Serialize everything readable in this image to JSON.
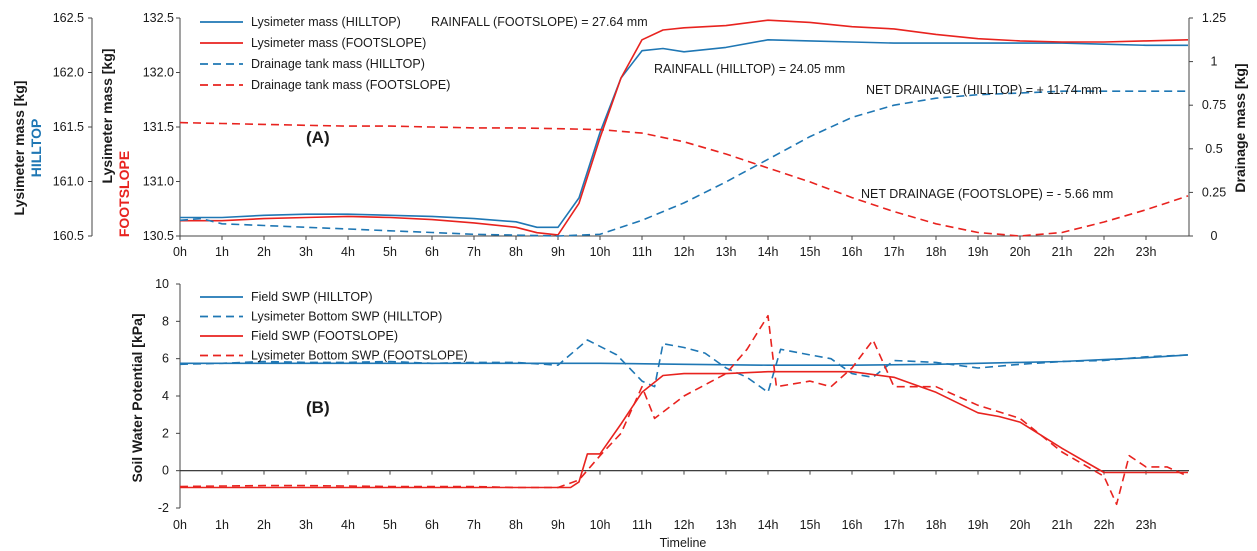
{
  "chart_data": [
    {
      "type": "line",
      "panel_label": "(A)",
      "x": [
        0,
        0.5,
        1,
        2,
        3,
        4,
        5,
        6,
        7,
        7.5,
        8,
        8.5,
        9,
        9.5,
        10,
        10.5,
        11,
        11.5,
        12,
        13,
        14,
        15,
        16,
        17,
        18,
        19,
        20,
        21,
        22,
        23,
        24
      ],
      "xticks": [
        "0h",
        "1h",
        "2h",
        "3h",
        "4h",
        "5h",
        "6h",
        "7h",
        "8h",
        "9h",
        "10h",
        "11h",
        "12h",
        "13h",
        "14h",
        "15h",
        "16h",
        "17h",
        "18h",
        "19h",
        "20h",
        "21h",
        "22h",
        "23h"
      ],
      "y_left_outer": {
        "label": "Lysimeter mass [kg]",
        "sublabel": "HILLTOP",
        "ylim": [
          160.5,
          162.5
        ],
        "ticks": [
          "160.5",
          "161.0",
          "161.5",
          "162.0",
          "162.5"
        ]
      },
      "y_left_inner": {
        "label": "Lysimeter mass [kg]",
        "sublabel": "FOOTSLOPE",
        "ylim": [
          130.5,
          132.5
        ],
        "ticks": [
          "130.5",
          "131.0",
          "131.5",
          "132.0",
          "132.5"
        ]
      },
      "y_right": {
        "label": "Drainage mass [kg]",
        "ylim": [
          0,
          1.25
        ],
        "ticks": [
          "0",
          "0.25",
          "0.5",
          "0.75",
          "1",
          "1.25"
        ]
      },
      "series": [
        {
          "name": "Lysimeter mass (HILLTOP)",
          "axis": "left_outer",
          "color": "#1f77b4",
          "dash": "solid",
          "points": [
            [
              0,
              160.67
            ],
            [
              1,
              160.67
            ],
            [
              2,
              160.69
            ],
            [
              3,
              160.7
            ],
            [
              4,
              160.7
            ],
            [
              5,
              160.69
            ],
            [
              6,
              160.68
            ],
            [
              7,
              160.66
            ],
            [
              8,
              160.63
            ],
            [
              8.5,
              160.58
            ],
            [
              9,
              160.58
            ],
            [
              9.5,
              160.85
            ],
            [
              10,
              161.45
            ],
            [
              10.5,
              161.95
            ],
            [
              11,
              162.2
            ],
            [
              11.5,
              162.22
            ],
            [
              12,
              162.19
            ],
            [
              13,
              162.23
            ],
            [
              14,
              162.3
            ],
            [
              15,
              162.29
            ],
            [
              16,
              162.28
            ],
            [
              17,
              162.27
            ],
            [
              18,
              162.27
            ],
            [
              19,
              162.27
            ],
            [
              20,
              162.27
            ],
            [
              21,
              162.27
            ],
            [
              22,
              162.26
            ],
            [
              23,
              162.25
            ],
            [
              24,
              162.25
            ]
          ]
        },
        {
          "name": "Lysimeter mass (FOOTSLOPE)",
          "axis": "left_inner",
          "color": "#e8231f",
          "dash": "solid",
          "points": [
            [
              0,
              130.64
            ],
            [
              1,
              130.64
            ],
            [
              2,
              130.66
            ],
            [
              3,
              130.67
            ],
            [
              4,
              130.68
            ],
            [
              5,
              130.67
            ],
            [
              6,
              130.65
            ],
            [
              7,
              130.62
            ],
            [
              8,
              130.58
            ],
            [
              8.5,
              130.53
            ],
            [
              9,
              130.51
            ],
            [
              9.5,
              130.8
            ],
            [
              10,
              131.4
            ],
            [
              10.5,
              131.95
            ],
            [
              11,
              132.3
            ],
            [
              11.5,
              132.39
            ],
            [
              12,
              132.41
            ],
            [
              13,
              132.43
            ],
            [
              14,
              132.48
            ],
            [
              15,
              132.46
            ],
            [
              16,
              132.42
            ],
            [
              17,
              132.4
            ],
            [
              18,
              132.35
            ],
            [
              19,
              132.31
            ],
            [
              20,
              132.29
            ],
            [
              21,
              132.28
            ],
            [
              22,
              132.28
            ],
            [
              23,
              132.29
            ],
            [
              24,
              132.3
            ]
          ]
        },
        {
          "name": "Drainage tank mass (HILLTOP)",
          "axis": "right",
          "color": "#1f77b4",
          "dash": "dashed",
          "points": [
            [
              0,
              0.09
            ],
            [
              0.5,
              0.1
            ],
            [
              1,
              0.07
            ],
            [
              2,
              0.06
            ],
            [
              3,
              0.05
            ],
            [
              4,
              0.04
            ],
            [
              5,
              0.03
            ],
            [
              6,
              0.02
            ],
            [
              7,
              0.01
            ],
            [
              8,
              0.005
            ],
            [
              9,
              0.0
            ],
            [
              10,
              0.01
            ],
            [
              11,
              0.09
            ],
            [
              12,
              0.19
            ],
            [
              13,
              0.31
            ],
            [
              14,
              0.44
            ],
            [
              15,
              0.57
            ],
            [
              16,
              0.68
            ],
            [
              17,
              0.75
            ],
            [
              18,
              0.79
            ],
            [
              19,
              0.81
            ],
            [
              20,
              0.82
            ],
            [
              21,
              0.83
            ],
            [
              22,
              0.83
            ],
            [
              23,
              0.83
            ],
            [
              24,
              0.83
            ]
          ]
        },
        {
          "name": "Drainage tank mass (FOOTSLOPE)",
          "axis": "right",
          "color": "#e8231f",
          "dash": "dashed",
          "points": [
            [
              0,
              0.65
            ],
            [
              1,
              0.645
            ],
            [
              2,
              0.64
            ],
            [
              3,
              0.635
            ],
            [
              4,
              0.63
            ],
            [
              5,
              0.63
            ],
            [
              6,
              0.625
            ],
            [
              7,
              0.62
            ],
            [
              8,
              0.62
            ],
            [
              9,
              0.615
            ],
            [
              10,
              0.61
            ],
            [
              11,
              0.59
            ],
            [
              12,
              0.54
            ],
            [
              13,
              0.47
            ],
            [
              14,
              0.39
            ],
            [
              15,
              0.31
            ],
            [
              16,
              0.22
            ],
            [
              17,
              0.14
            ],
            [
              18,
              0.07
            ],
            [
              19,
              0.02
            ],
            [
              20,
              0.0
            ],
            [
              21,
              0.02
            ],
            [
              22,
              0.08
            ],
            [
              23,
              0.15
            ],
            [
              24,
              0.23
            ]
          ]
        }
      ],
      "annotations": [
        "RAINFALL (FOOTSLOPE) = 27.64 mm",
        "RAINFALL (HILLTOP) = 24.05 mm",
        "NET DRAINAGE (HILLTOP) = + 11.74 mm",
        "NET DRAINAGE (FOOTSLOPE) = - 5.66 mm"
      ]
    },
    {
      "type": "line",
      "panel_label": "(B)",
      "xlabel": "Timeline",
      "xticks": [
        "0h",
        "1h",
        "2h",
        "3h",
        "4h",
        "5h",
        "6h",
        "7h",
        "8h",
        "9h",
        "10h",
        "11h",
        "12h",
        "13h",
        "14h",
        "15h",
        "16h",
        "17h",
        "18h",
        "19h",
        "20h",
        "21h",
        "22h",
        "23h"
      ],
      "ylabel": "Soil Water Potential [kPa]",
      "ylim": [
        -2,
        10
      ],
      "yticks": [
        "-2",
        "0",
        "2",
        "4",
        "6",
        "8",
        "10"
      ],
      "series": [
        {
          "name": "Field SWP (HILLTOP)",
          "color": "#1f77b4",
          "dash": "solid",
          "points": [
            [
              0,
              5.75
            ],
            [
              2,
              5.75
            ],
            [
              4,
              5.75
            ],
            [
              6,
              5.75
            ],
            [
              8,
              5.75
            ],
            [
              10,
              5.75
            ],
            [
              12,
              5.7
            ],
            [
              14,
              5.65
            ],
            [
              16,
              5.65
            ],
            [
              18,
              5.7
            ],
            [
              19,
              5.75
            ],
            [
              20,
              5.8
            ],
            [
              21,
              5.85
            ],
            [
              22,
              5.95
            ],
            [
              23,
              6.05
            ],
            [
              24,
              6.2
            ]
          ]
        },
        {
          "name": "Lysimeter Bottom SWP (HILLTOP)",
          "color": "#1f77b4",
          "dash": "dashed",
          "points": [
            [
              0,
              5.7
            ],
            [
              1,
              5.75
            ],
            [
              2,
              5.85
            ],
            [
              3,
              5.8
            ],
            [
              4,
              5.8
            ],
            [
              5,
              5.85
            ],
            [
              6,
              5.75
            ],
            [
              7,
              5.8
            ],
            [
              8,
              5.8
            ],
            [
              9,
              5.65
            ],
            [
              9.7,
              7.0
            ],
            [
              10.4,
              6.2
            ],
            [
              11,
              4.8
            ],
            [
              11.3,
              4.5
            ],
            [
              11.5,
              6.8
            ],
            [
              12,
              6.6
            ],
            [
              12.5,
              6.3
            ],
            [
              13,
              5.5
            ],
            [
              13.5,
              5.0
            ],
            [
              14,
              4.2
            ],
            [
              14.3,
              6.5
            ],
            [
              15,
              6.2
            ],
            [
              15.5,
              6.0
            ],
            [
              16,
              5.2
            ],
            [
              16.5,
              5.0
            ],
            [
              17,
              5.9
            ],
            [
              18,
              5.8
            ],
            [
              19,
              5.5
            ],
            [
              20,
              5.7
            ],
            [
              21,
              5.85
            ],
            [
              22,
              5.9
            ],
            [
              23,
              6.1
            ],
            [
              24,
              6.2
            ]
          ]
        },
        {
          "name": "Field SWP (FOOTSLOPE)",
          "color": "#e8231f",
          "dash": "solid",
          "points": [
            [
              0,
              -0.9
            ],
            [
              2,
              -0.9
            ],
            [
              4,
              -0.9
            ],
            [
              6,
              -0.9
            ],
            [
              8,
              -0.9
            ],
            [
              9.3,
              -0.9
            ],
            [
              9.5,
              -0.6
            ],
            [
              9.7,
              0.9
            ],
            [
              10,
              0.9
            ],
            [
              10.5,
              2.5
            ],
            [
              11,
              4.2
            ],
            [
              11.5,
              5.1
            ],
            [
              12,
              5.2
            ],
            [
              13,
              5.2
            ],
            [
              14,
              5.3
            ],
            [
              15,
              5.3
            ],
            [
              16,
              5.3
            ],
            [
              17,
              5.0
            ],
            [
              18,
              4.2
            ],
            [
              19,
              3.1
            ],
            [
              19.5,
              2.9
            ],
            [
              20,
              2.6
            ],
            [
              21,
              1.2
            ],
            [
              22,
              -0.1
            ],
            [
              23,
              -0.1
            ],
            [
              24,
              -0.1
            ]
          ]
        },
        {
          "name": "Lysimeter Bottom SWP (FOOTSLOPE)",
          "color": "#e8231f",
          "dash": "dashed",
          "points": [
            [
              0,
              -0.85
            ],
            [
              2,
              -0.8
            ],
            [
              3,
              -0.8
            ],
            [
              5,
              -0.85
            ],
            [
              7,
              -0.85
            ],
            [
              8,
              -0.9
            ],
            [
              9,
              -0.9
            ],
            [
              9.5,
              -0.5
            ],
            [
              10,
              0.8
            ],
            [
              10.5,
              2.0
            ],
            [
              11,
              4.5
            ],
            [
              11.3,
              2.8
            ],
            [
              12,
              4.0
            ],
            [
              13,
              5.2
            ],
            [
              13.5,
              6.5
            ],
            [
              14,
              8.3
            ],
            [
              14.2,
              4.5
            ],
            [
              15,
              4.8
            ],
            [
              15.5,
              4.5
            ],
            [
              16,
              5.5
            ],
            [
              16.5,
              7.0
            ],
            [
              17,
              4.5
            ],
            [
              18,
              4.5
            ],
            [
              19,
              3.5
            ],
            [
              20,
              2.8
            ],
            [
              21,
              1.0
            ],
            [
              22,
              -0.3
            ],
            [
              22.3,
              -1.8
            ],
            [
              22.6,
              0.8
            ],
            [
              23,
              0.2
            ],
            [
              23.5,
              0.2
            ],
            [
              24,
              -0.3
            ]
          ]
        }
      ]
    }
  ]
}
